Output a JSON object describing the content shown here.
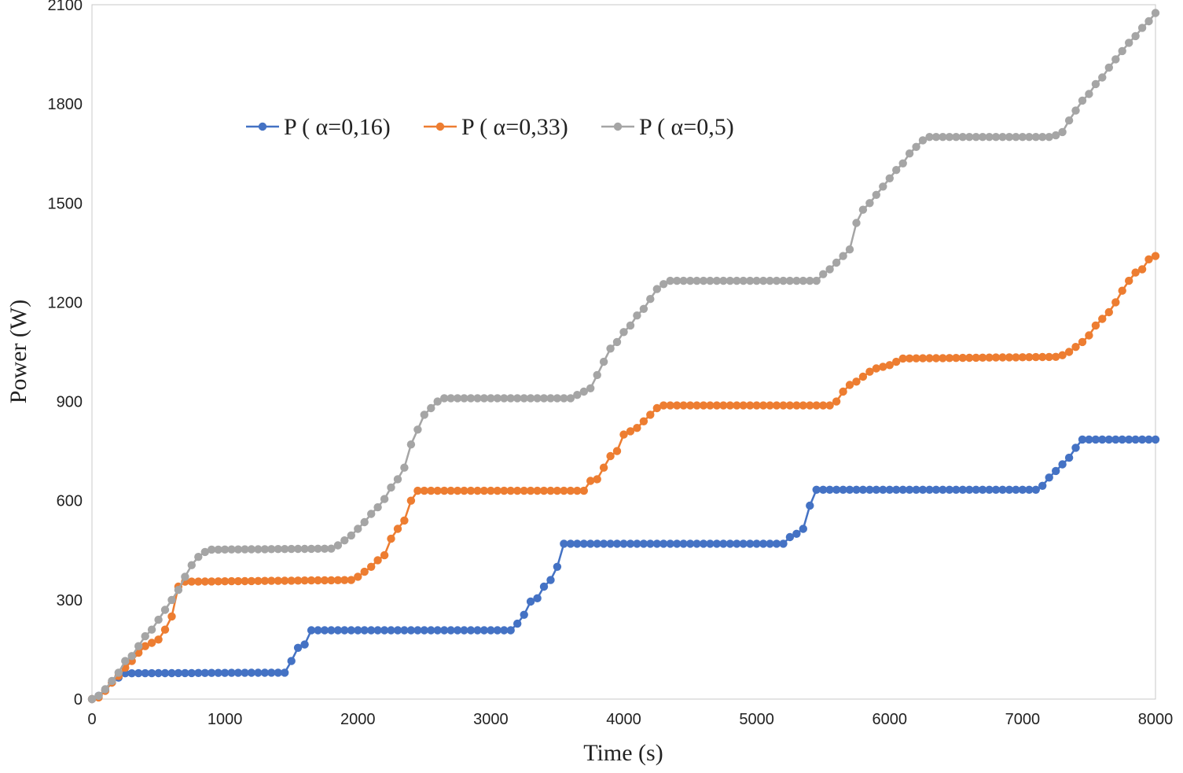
{
  "chart_data": {
    "type": "line",
    "xlabel": "Time (s)",
    "ylabel": "Power (W)",
    "xlim": [
      0,
      8000
    ],
    "ylim": [
      0,
      2100
    ],
    "xticks": [
      0,
      1000,
      2000,
      3000,
      4000,
      5000,
      6000,
      7000,
      8000
    ],
    "yticks": [
      0,
      300,
      600,
      900,
      1200,
      1500,
      1800,
      2100
    ],
    "grid": false,
    "legend_position": "top-left",
    "markers": true,
    "series": [
      {
        "name": "P ( α=0,16)",
        "color": "#4472C4",
        "x": [
          0,
          50,
          100,
          150,
          200,
          250,
          1450,
          1500,
          1550,
          1600,
          1650,
          3150,
          3200,
          3250,
          3300,
          3350,
          3400,
          3450,
          3500,
          3550,
          3600,
          5200,
          5250,
          5300,
          5350,
          5400,
          5450,
          7100,
          7150,
          7200,
          7250,
          7300,
          7350,
          7400,
          7450,
          7500,
          8000
        ],
        "y": [
          0,
          10,
          28,
          50,
          65,
          78,
          80,
          115,
          155,
          165,
          208,
          208,
          228,
          255,
          295,
          305,
          340,
          360,
          400,
          470,
          470,
          470,
          490,
          500,
          515,
          585,
          633,
          633,
          645,
          670,
          690,
          710,
          730,
          760,
          785,
          785,
          785
        ]
      },
      {
        "name": "P ( α=0,33)",
        "color": "#ED7D31",
        "x": [
          0,
          50,
          100,
          150,
          200,
          250,
          300,
          350,
          400,
          450,
          500,
          550,
          600,
          650,
          700,
          1950,
          2000,
          2050,
          2100,
          2150,
          2200,
          2250,
          2300,
          2350,
          2400,
          2450,
          2500,
          3700,
          3750,
          3800,
          3850,
          3900,
          3950,
          4000,
          4050,
          4100,
          4150,
          4200,
          4250,
          4300,
          4350,
          4400,
          5550,
          5600,
          5650,
          5700,
          5750,
          5800,
          5850,
          5900,
          5950,
          6000,
          6050,
          6100,
          7250,
          7300,
          7350,
          7400,
          7450,
          7500,
          7550,
          7600,
          7650,
          7700,
          7750,
          7800,
          7850,
          7900,
          7950,
          8000
        ],
        "y": [
          0,
          5,
          25,
          50,
          70,
          95,
          115,
          140,
          160,
          170,
          180,
          210,
          250,
          340,
          355,
          360,
          370,
          385,
          400,
          420,
          435,
          485,
          515,
          540,
          600,
          630,
          630,
          630,
          660,
          665,
          700,
          735,
          750,
          800,
          810,
          820,
          840,
          860,
          880,
          888,
          888,
          888,
          888,
          900,
          930,
          950,
          960,
          975,
          990,
          1000,
          1005,
          1010,
          1020,
          1030,
          1035,
          1040,
          1050,
          1065,
          1080,
          1100,
          1130,
          1150,
          1170,
          1200,
          1235,
          1265,
          1290,
          1300,
          1330,
          1340
        ]
      },
      {
        "name": "P ( α=0,5)",
        "color": "#A5A5A5",
        "x": [
          0,
          50,
          100,
          150,
          200,
          250,
          300,
          350,
          400,
          450,
          500,
          550,
          600,
          650,
          700,
          750,
          800,
          850,
          900,
          1800,
          1850,
          1900,
          1950,
          2000,
          2050,
          2100,
          2150,
          2200,
          2250,
          2300,
          2350,
          2400,
          2450,
          2500,
          2550,
          2600,
          2650,
          2700,
          3600,
          3650,
          3700,
          3750,
          3800,
          3850,
          3900,
          3950,
          4000,
          4050,
          4100,
          4150,
          4200,
          4250,
          4300,
          4350,
          4400,
          5450,
          5500,
          5550,
          5600,
          5650,
          5700,
          5750,
          5800,
          5850,
          5900,
          5950,
          6000,
          6050,
          6100,
          6150,
          6200,
          6250,
          6300,
          7200,
          7250,
          7300,
          7350,
          7400,
          7450,
          7500,
          7550,
          7600,
          7650,
          7700,
          7750,
          7800,
          7850,
          7900,
          7950,
          8000
        ],
        "y": [
          0,
          10,
          30,
          55,
          80,
          115,
          130,
          160,
          190,
          210,
          240,
          270,
          300,
          330,
          370,
          405,
          430,
          445,
          452,
          455,
          465,
          480,
          495,
          515,
          535,
          560,
          580,
          605,
          640,
          665,
          700,
          770,
          815,
          860,
          880,
          900,
          910,
          910,
          910,
          920,
          930,
          940,
          980,
          1020,
          1060,
          1080,
          1110,
          1130,
          1160,
          1180,
          1210,
          1240,
          1255,
          1265,
          1265,
          1265,
          1285,
          1300,
          1320,
          1340,
          1360,
          1440,
          1480,
          1500,
          1525,
          1550,
          1575,
          1600,
          1620,
          1650,
          1670,
          1690,
          1700,
          1700,
          1705,
          1715,
          1750,
          1780,
          1810,
          1830,
          1860,
          1880,
          1910,
          1935,
          1960,
          1985,
          2005,
          2030,
          2050,
          2075
        ]
      }
    ]
  }
}
